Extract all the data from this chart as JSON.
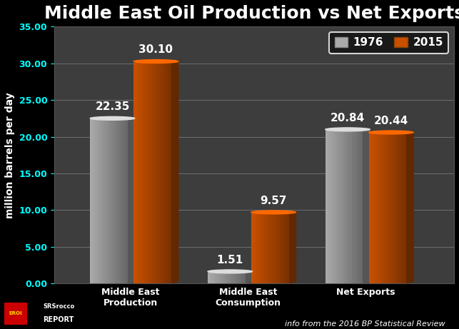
{
  "title": "Middle East Oil Production vs Net Exports",
  "ylabel": "million barrels per day",
  "categories": [
    "Middle East\nProduction",
    "Middle East\nConsumption",
    "Net Exports"
  ],
  "values_1976": [
    22.35,
    1.51,
    20.84
  ],
  "values_2015": [
    30.1,
    9.57,
    20.44
  ],
  "color_1976": "#aaaaaa",
  "color_2015": "#c85000",
  "ylim": [
    0,
    35
  ],
  "yticks": [
    0.0,
    5.0,
    10.0,
    15.0,
    20.0,
    25.0,
    30.0,
    35.0
  ],
  "background_color": "#000000",
  "plot_bg_color": "#3d3d3d",
  "grid_color": "#777777",
  "text_color": "#ffffff",
  "tick_color": "#00ffff",
  "legend_labels": [
    "1976",
    "2015"
  ],
  "footer_text": "info from the 2016 BP Statistical Review",
  "bar_width": 0.32,
  "label_fontsize": 11,
  "title_fontsize": 18,
  "tick_fontsize": 9,
  "ylabel_fontsize": 10,
  "value_fontsize": 11
}
